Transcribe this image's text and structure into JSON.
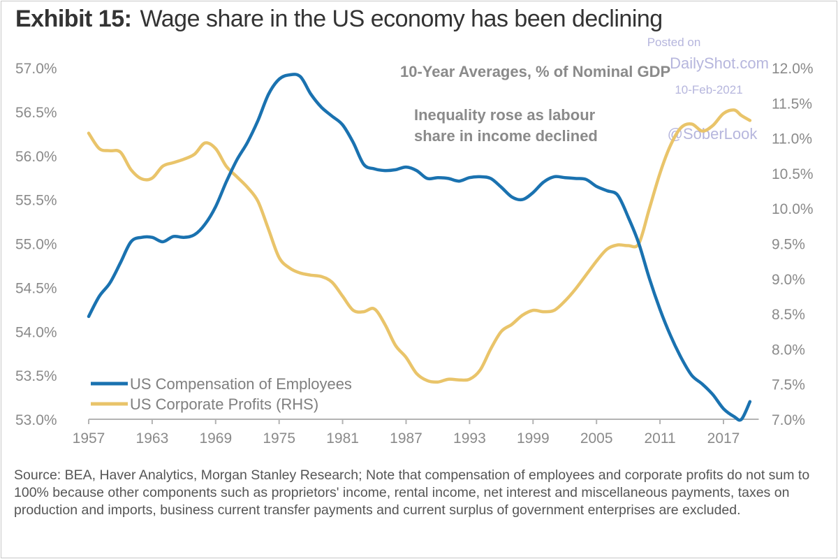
{
  "header": {
    "exhibit": "Exhibit 15:",
    "title": "Wage share in the US economy has been declining"
  },
  "watermark": {
    "line1": "Posted on",
    "line2": "DailyShot.com",
    "line3": "10-Feb-2021",
    "line4": "@SoberLook"
  },
  "footnote": "Source: BEA, Haver Analytics, Morgan Stanley Research; Note that compensation of employees and corporate profits do not sum to 100% because other components such as proprietors' income, rental income, net interest and miscellaneous payments, taxes on production and imports, business current transfer payments and current surplus of government enterprises are excluded.",
  "chart_data": {
    "type": "line",
    "title": "Wage share in the US economy has been declining",
    "subtitle": "10-Year Averages, % of Nominal GDP",
    "annotations": [
      "Inequality rose as labour",
      "share in income declined"
    ],
    "xlabel": "",
    "ylabel_left": "",
    "ylabel_right": "",
    "xlim": [
      1957,
      2020
    ],
    "x_ticks": [
      "1957",
      "1963",
      "1969",
      "1975",
      "1981",
      "1987",
      "1993",
      "1999",
      "2005",
      "2011",
      "2017"
    ],
    "ylim_left": [
      53.0,
      57.0
    ],
    "y_ticks_left": [
      "57.0%",
      "56.5%",
      "56.0%",
      "55.5%",
      "55.0%",
      "54.5%",
      "54.0%",
      "53.5%",
      "53.0%"
    ],
    "ylim_right": [
      7.0,
      12.0
    ],
    "y_ticks_right": [
      "12.0%",
      "11.5%",
      "11.0%",
      "10.5%",
      "10.0%",
      "9.5%",
      "9.0%",
      "8.5%",
      "8.0%",
      "7.5%",
      "7.0%"
    ],
    "grid": false,
    "legend_position": "bottom-left",
    "series": [
      {
        "name": "US Compensation of Employees",
        "axis": "left",
        "color": "#1a72b0",
        "x": [
          1957,
          1958,
          1959,
          1960,
          1961,
          1962,
          1963,
          1964,
          1965,
          1966,
          1967,
          1968,
          1969,
          1970,
          1971,
          1972,
          1973,
          1974,
          1975,
          1976,
          1977,
          1978,
          1979,
          1980,
          1981,
          1982,
          1983,
          1984,
          1985,
          1986,
          1987,
          1988,
          1989,
          1990,
          1991,
          1992,
          1993,
          1994,
          1995,
          1996,
          1997,
          1998,
          1999,
          2000,
          2001,
          2002,
          2003,
          2004,
          2005,
          2006,
          2007,
          2008,
          2009,
          2010,
          2011,
          2012,
          2013,
          2014,
          2015,
          2016,
          2017,
          2018,
          2018.7,
          2019.5
        ],
        "values": [
          54.17,
          54.4,
          54.55,
          54.78,
          55.02,
          55.07,
          55.07,
          55.02,
          55.08,
          55.07,
          55.1,
          55.22,
          55.42,
          55.7,
          55.95,
          56.15,
          56.4,
          56.7,
          56.87,
          56.92,
          56.9,
          56.7,
          56.55,
          56.45,
          56.35,
          56.15,
          55.9,
          55.85,
          55.83,
          55.84,
          55.87,
          55.83,
          55.74,
          55.75,
          55.74,
          55.71,
          55.75,
          55.76,
          55.74,
          55.64,
          55.53,
          55.5,
          55.58,
          55.7,
          55.76,
          55.75,
          55.74,
          55.73,
          55.65,
          55.6,
          55.55,
          55.3,
          55.0,
          54.6,
          54.25,
          53.95,
          53.7,
          53.5,
          53.4,
          53.28,
          53.12,
          53.03,
          53.0,
          53.2
        ]
      },
      {
        "name": "US Corporate Profits (RHS)",
        "axis": "right",
        "color": "#e9c46a",
        "x": [
          1957,
          1958,
          1959,
          1960,
          1961,
          1962,
          1963,
          1964,
          1965,
          1966,
          1967,
          1968,
          1969,
          1970,
          1971,
          1972,
          1973,
          1974,
          1975,
          1976,
          1977,
          1978,
          1979,
          1980,
          1981,
          1982,
          1983,
          1984,
          1985,
          1986,
          1987,
          1988,
          1989,
          1990,
          1991,
          1992,
          1993,
          1994,
          1995,
          1996,
          1997,
          1998,
          1999,
          2000,
          2001,
          2002,
          2003,
          2004,
          2005,
          2006,
          2007,
          2008,
          2009,
          2010,
          2011,
          2012,
          2013,
          2014,
          2015,
          2016,
          2017,
          2018,
          2018.7,
          2019.5
        ],
        "values": [
          11.07,
          10.85,
          10.82,
          10.8,
          10.55,
          10.42,
          10.43,
          10.6,
          10.65,
          10.7,
          10.77,
          10.93,
          10.85,
          10.6,
          10.45,
          10.3,
          10.1,
          9.7,
          9.3,
          9.15,
          9.08,
          9.05,
          9.03,
          8.95,
          8.75,
          8.55,
          8.53,
          8.57,
          8.35,
          8.05,
          7.88,
          7.65,
          7.55,
          7.53,
          7.57,
          7.56,
          7.57,
          7.7,
          8.0,
          8.25,
          8.35,
          8.48,
          8.55,
          8.53,
          8.55,
          8.68,
          8.85,
          9.05,
          9.25,
          9.42,
          9.48,
          9.47,
          9.5,
          10.0,
          10.5,
          10.9,
          11.15,
          11.2,
          11.1,
          11.18,
          11.35,
          11.4,
          11.32,
          11.25
        ]
      }
    ]
  }
}
